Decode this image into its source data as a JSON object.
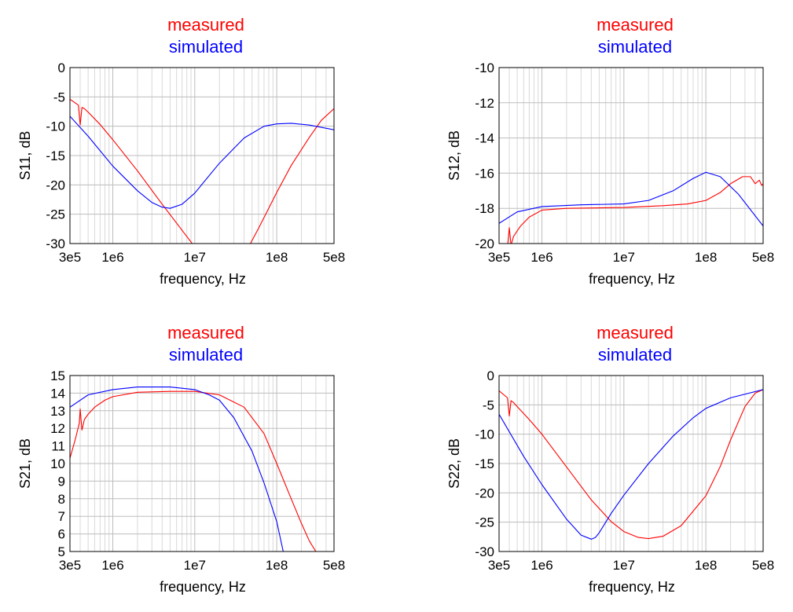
{
  "chart_data": [
    {
      "type": "line",
      "id": "s11",
      "xlabel": "frequency, Hz",
      "ylabel": "S11, dB",
      "x_scale": "log",
      "xlim": [
        300000,
        500000000
      ],
      "ylim": [
        -30,
        0
      ],
      "x_ticks": [
        300000,
        1000000,
        10000000,
        100000000,
        500000000
      ],
      "x_tick_labels": [
        "3e5",
        "1e6",
        "1e7",
        "1e8",
        "5e8"
      ],
      "y_ticks": [
        0,
        -5,
        -10,
        -15,
        -20,
        -25,
        -30
      ],
      "y_tick_labels": [
        "0",
        "-5",
        "-10",
        "-15",
        "-20",
        "-25",
        "-30"
      ],
      "grid": true,
      "legend_position": "top-center",
      "series": [
        {
          "name": "measured",
          "color": "#ff0000",
          "x": [
            300000,
            380000,
            400000,
            420000,
            450000,
            500000,
            700000,
            1000000,
            2000000,
            4000000,
            8000000,
            12000000,
            40000000,
            60000000,
            100000000,
            150000000,
            250000000,
            350000000,
            500000000
          ],
          "y": [
            -5.4,
            -6.4,
            -9.8,
            -6.8,
            -7.0,
            -7.6,
            -9.7,
            -12.3,
            -17.6,
            -23.3,
            -28.8,
            -32.0,
            -32.0,
            -27.4,
            -21.3,
            -16.7,
            -11.9,
            -9.0,
            -7.0
          ]
        },
        {
          "name": "simulated",
          "color": "#0000ff",
          "x": [
            300000,
            500000,
            1000000,
            2000000,
            3000000,
            4000000,
            5000000,
            7000000,
            10000000,
            20000000,
            40000000,
            70000000,
            100000000,
            150000000,
            250000000,
            500000000
          ],
          "y": [
            -8.3,
            -11.7,
            -16.8,
            -21.0,
            -23.0,
            -23.8,
            -24.0,
            -23.3,
            -21.4,
            -16.3,
            -12.0,
            -10.0,
            -9.6,
            -9.5,
            -9.8,
            -10.6
          ]
        }
      ]
    },
    {
      "type": "line",
      "id": "s12",
      "xlabel": "frequency, Hz",
      "ylabel": "S12, dB",
      "x_scale": "log",
      "xlim": [
        300000,
        500000000
      ],
      "ylim": [
        -20,
        -10
      ],
      "x_ticks": [
        300000,
        1000000,
        10000000,
        100000000,
        500000000
      ],
      "x_tick_labels": [
        "3e5",
        "1e6",
        "1e7",
        "1e8",
        "5e8"
      ],
      "y_ticks": [
        -10,
        -12,
        -14,
        -16,
        -18,
        -20
      ],
      "y_tick_labels": [
        "-10",
        "-12",
        "-14",
        "-16",
        "-18",
        "-20"
      ],
      "grid": true,
      "legend_position": "top-center",
      "series": [
        {
          "name": "measured",
          "color": "#ff0000",
          "x": [
            380000,
            400000,
            420000,
            450000,
            480000,
            550000,
            700000,
            1000000,
            2000000,
            10000000,
            30000000,
            60000000,
            100000000,
            150000000,
            200000000,
            280000000,
            350000000,
            400000000,
            450000000,
            480000000,
            500000000
          ],
          "y": [
            -20.2,
            -19.1,
            -20.1,
            -19.6,
            -19.4,
            -19.0,
            -18.5,
            -18.1,
            -18.0,
            -17.95,
            -17.85,
            -17.75,
            -17.55,
            -17.1,
            -16.6,
            -16.2,
            -16.2,
            -16.6,
            -16.4,
            -16.7,
            -16.6
          ]
        },
        {
          "name": "simulated",
          "color": "#0000ff",
          "x": [
            300000,
            500000,
            1000000,
            3000000,
            10000000,
            20000000,
            40000000,
            70000000,
            100000000,
            150000000,
            250000000,
            500000000
          ],
          "y": [
            -18.85,
            -18.2,
            -17.9,
            -17.8,
            -17.75,
            -17.55,
            -17.0,
            -16.3,
            -15.95,
            -16.2,
            -17.2,
            -19.0
          ]
        }
      ]
    },
    {
      "type": "line",
      "id": "s21",
      "xlabel": "frequency, Hz",
      "ylabel": "S21, dB",
      "x_scale": "log",
      "xlim": [
        300000,
        500000000
      ],
      "ylim": [
        5,
        15
      ],
      "x_ticks": [
        300000,
        1000000,
        10000000,
        100000000,
        500000000
      ],
      "x_tick_labels": [
        "3e5",
        "1e6",
        "1e7",
        "1e8",
        "5e8"
      ],
      "y_ticks": [
        15,
        14,
        13,
        12,
        11,
        10,
        9,
        8,
        7,
        6,
        5
      ],
      "y_tick_labels": [
        "15",
        "14",
        "13",
        "12",
        "11",
        "10",
        "9",
        "8",
        "7",
        "6",
        "5"
      ],
      "grid": true,
      "legend_position": "top-center",
      "series": [
        {
          "name": "measured",
          "color": "#ff0000",
          "x": [
            300000,
            350000,
            390000,
            400000,
            420000,
            450000,
            500000,
            600000,
            800000,
            1000000,
            2000000,
            5000000,
            10000000,
            20000000,
            40000000,
            70000000,
            100000000,
            150000000,
            200000000,
            250000000,
            300000000
          ],
          "y": [
            10.3,
            11.4,
            12.3,
            13.1,
            11.9,
            12.5,
            12.8,
            13.2,
            13.6,
            13.8,
            14.05,
            14.1,
            14.1,
            13.9,
            13.2,
            11.7,
            10.0,
            8.0,
            6.6,
            5.6,
            5.0
          ]
        },
        {
          "name": "simulated",
          "color": "#0000ff",
          "x": [
            300000,
            500000,
            1000000,
            2000000,
            5000000,
            10000000,
            15000000,
            20000000,
            30000000,
            50000000,
            70000000,
            100000000,
            120000000
          ],
          "y": [
            13.2,
            13.9,
            14.2,
            14.35,
            14.35,
            14.2,
            13.9,
            13.6,
            12.6,
            10.7,
            8.9,
            6.7,
            5.0
          ]
        }
      ]
    },
    {
      "type": "line",
      "id": "s22",
      "xlabel": "frequency, Hz",
      "ylabel": "S22, dB",
      "x_scale": "log",
      "xlim": [
        300000,
        500000000
      ],
      "ylim": [
        -30,
        0
      ],
      "x_ticks": [
        300000,
        1000000,
        10000000,
        100000000,
        500000000
      ],
      "x_tick_labels": [
        "3e5",
        "1e6",
        "1e7",
        "1e8",
        "5e8"
      ],
      "y_ticks": [
        0,
        -5,
        -10,
        -15,
        -20,
        -25,
        -30
      ],
      "y_tick_labels": [
        "0",
        "-5",
        "-10",
        "-15",
        "-20",
        "-25",
        "-30"
      ],
      "grid": true,
      "legend_position": "top-center",
      "series": [
        {
          "name": "measured",
          "color": "#ff0000",
          "x": [
            300000,
            380000,
            400000,
            420000,
            450000,
            500000,
            700000,
            1000000,
            2000000,
            4000000,
            7000000,
            10000000,
            15000000,
            20000000,
            30000000,
            50000000,
            100000000,
            150000000,
            200000000,
            300000000,
            400000000,
            500000000
          ],
          "y": [
            -2.6,
            -3.8,
            -6.9,
            -4.3,
            -4.6,
            -5.3,
            -7.5,
            -10.0,
            -15.6,
            -21.2,
            -24.9,
            -26.6,
            -27.6,
            -27.8,
            -27.4,
            -25.6,
            -20.5,
            -15.5,
            -11.0,
            -5.3,
            -3.0,
            -2.4
          ]
        },
        {
          "name": "simulated",
          "color": "#0000ff",
          "x": [
            300000,
            600000,
            1000000,
            2000000,
            3000000,
            4000000,
            4500000,
            5000000,
            7000000,
            10000000,
            20000000,
            40000000,
            70000000,
            100000000,
            200000000,
            500000000
          ],
          "y": [
            -6.6,
            -13.8,
            -18.6,
            -24.5,
            -27.2,
            -27.9,
            -27.6,
            -26.8,
            -23.5,
            -20.4,
            -15.0,
            -10.3,
            -7.2,
            -5.6,
            -3.8,
            -2.4
          ]
        }
      ]
    }
  ]
}
